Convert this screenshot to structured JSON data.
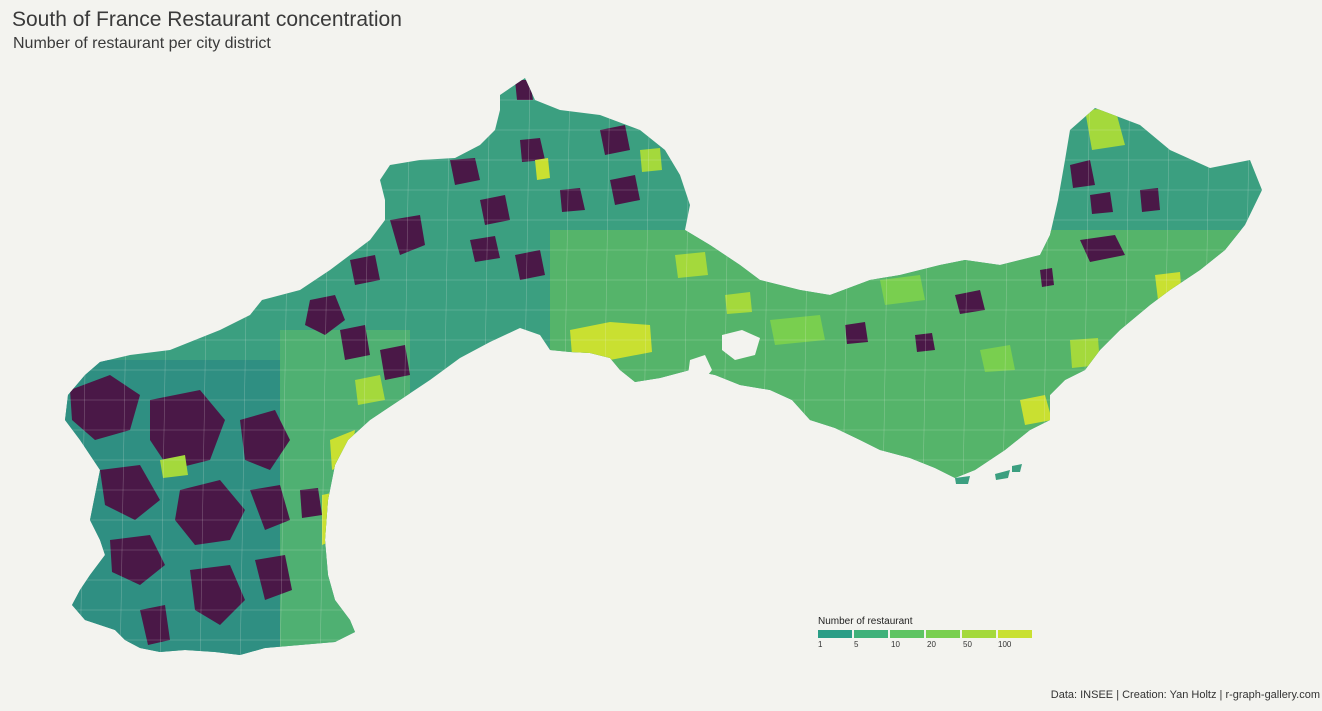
{
  "title": "South of France Restaurant concentration",
  "subtitle": "Number of restaurant per city district",
  "caption": "Data: INSEE | Creation: Yan Holtz | r-graph-gallery.com",
  "legend": {
    "title": "Number of restaurant",
    "breaks": [
      "1",
      "5",
      "10",
      "20",
      "50",
      "100"
    ],
    "colors": [
      "#2a9d86",
      "#3fb17a",
      "#5ec462",
      "#79cf4f",
      "#a4d93c",
      "#c9e031"
    ]
  },
  "no_restaurant_color": "#4a1847",
  "background": "#f3f3ef"
}
